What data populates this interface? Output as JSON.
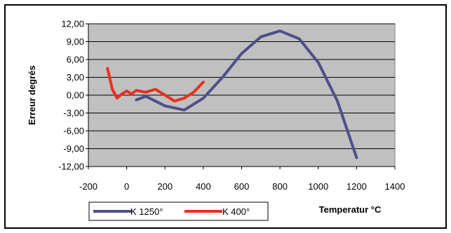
{
  "chart_data": {
    "type": "line",
    "xlabel": "Temperatur °C",
    "ylabel": "Erreur degrés",
    "xlim": [
      -200,
      1400
    ],
    "ylim": [
      -12,
      12
    ],
    "x_ticks": [
      "-200",
      "0",
      "200",
      "400",
      "600",
      "800",
      "1000",
      "1200",
      "1400"
    ],
    "y_ticks": [
      "12,00",
      "9,00",
      "6,00",
      "3,00",
      "0,00",
      "-3,00",
      "-6,00",
      "-9,00",
      "-12,00"
    ],
    "grid": "horizontal",
    "legend_position": "bottom-left",
    "plot_background": "#c0c0c0",
    "series": [
      {
        "name": "K 1250°",
        "color": "#4f4f8a",
        "x": [
          50,
          100,
          200,
          300,
          400,
          500,
          600,
          700,
          800,
          900,
          1000,
          1100,
          1200
        ],
        "y": [
          -0.8,
          -0.2,
          -1.8,
          -2.5,
          -0.5,
          3.0,
          7.0,
          9.8,
          10.8,
          9.5,
          5.5,
          -1.0,
          -10.5
        ]
      },
      {
        "name": "K 400°",
        "color": "#e8301f",
        "x": [
          -100,
          -75,
          -50,
          -25,
          0,
          25,
          50,
          100,
          150,
          200,
          250,
          300,
          350,
          400
        ],
        "y": [
          4.5,
          1.0,
          -0.5,
          0.2,
          0.7,
          0.2,
          0.8,
          0.5,
          1.0,
          0.0,
          -1.0,
          -0.5,
          0.5,
          2.2
        ]
      }
    ]
  }
}
